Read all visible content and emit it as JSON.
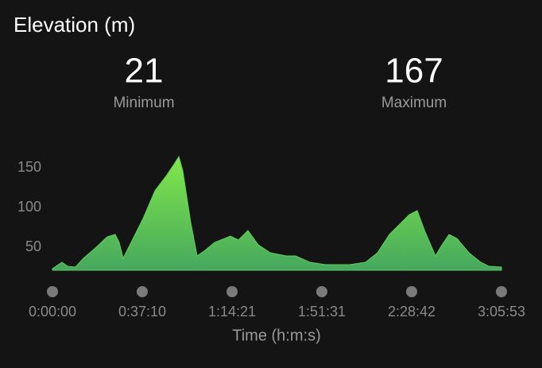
{
  "title": "Elevation (m)",
  "stats": [
    {
      "value": 21,
      "label": "Minimum"
    },
    {
      "value": 167,
      "label": "Maximum"
    }
  ],
  "chart_data": {
    "type": "area",
    "color": "#5fcf5a",
    "x": [
      0,
      237,
      375,
      572,
      770,
      1066,
      1362,
      1559,
      1658,
      1757,
      1954,
      2250,
      2546,
      2843,
      3040,
      3139,
      3238,
      3435,
      3593,
      3790,
      4027,
      4422,
      4620,
      4856,
      5113,
      5409,
      5804,
      6040,
      6396,
      6791,
      7383,
      7778,
      8074,
      8370,
      8666,
      8863,
      9060,
      9258,
      9514,
      9652,
      9850,
      10047,
      10344,
      10640,
      10837,
      11153
    ],
    "values": [
      23,
      31,
      26,
      25,
      36,
      49,
      63,
      66,
      56,
      36,
      56,
      86,
      121,
      141,
      156,
      164,
      146,
      81,
      39,
      46,
      56,
      64,
      59,
      71,
      53,
      43,
      39,
      39,
      31,
      28,
      28,
      31,
      43,
      66,
      81,
      91,
      96,
      69,
      39,
      51,
      66,
      61,
      43,
      31,
      26,
      25
    ],
    "xlim": [
      0,
      11153
    ],
    "xticks": [
      {
        "value": 0,
        "label": "0:00:00"
      },
      {
        "value": 2230,
        "label": "0:37:10"
      },
      {
        "value": 4461,
        "label": "1:14:21"
      },
      {
        "value": 6691,
        "label": "1:51:31"
      },
      {
        "value": 8922,
        "label": "2:28:42"
      },
      {
        "value": 11153,
        "label": "3:05:53"
      }
    ],
    "ylim": [
      21,
      171
    ],
    "yticks": [
      50,
      100,
      150
    ],
    "xlabel": "Time (h:m:s)"
  }
}
